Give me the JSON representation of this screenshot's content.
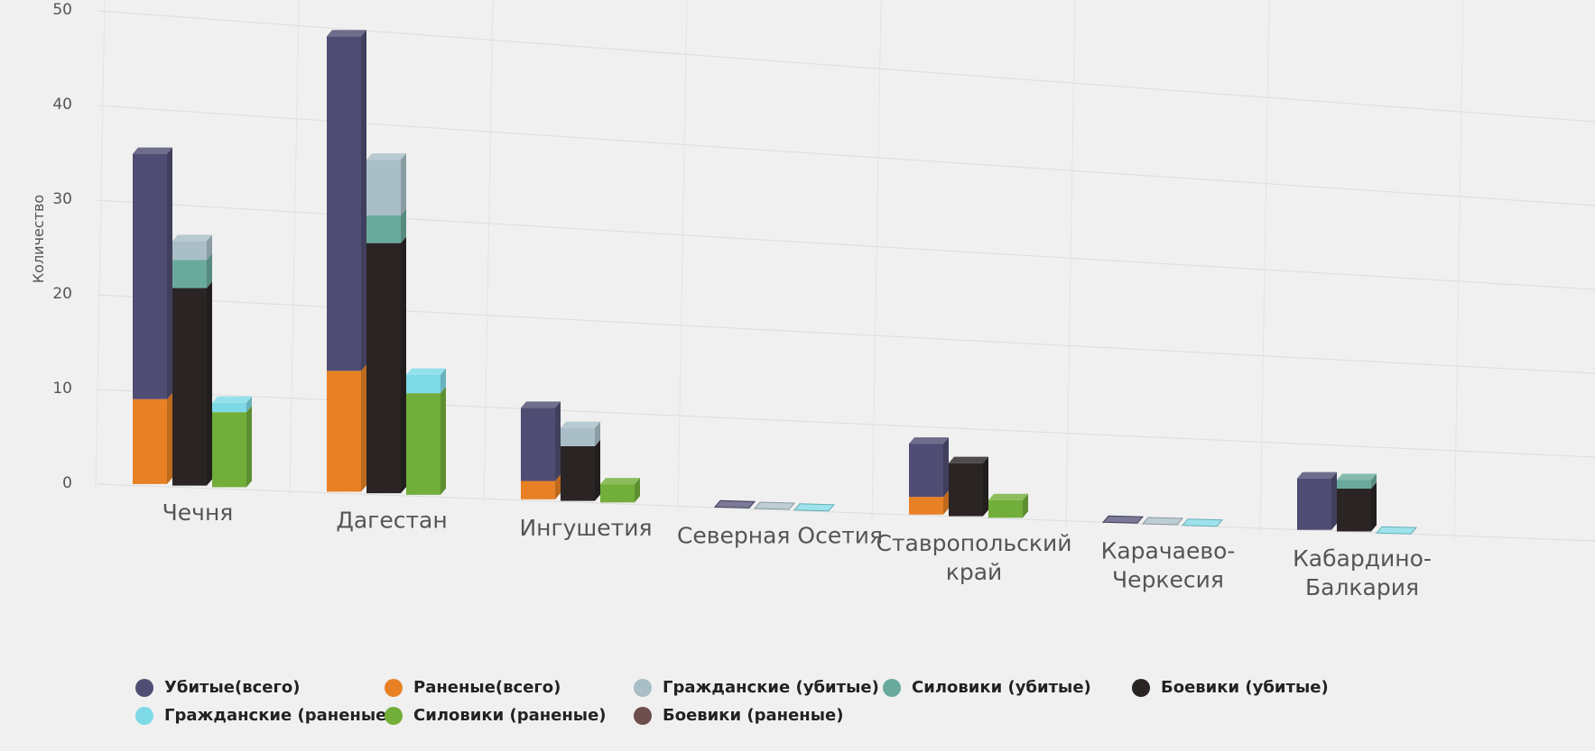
{
  "chart_data": {
    "type": "bar",
    "subtype": "3d-stacked-grouped",
    "ylabel": "Количество",
    "ylim": [
      0,
      50
    ],
    "yticks": [
      0,
      10,
      20,
      30,
      40,
      50
    ],
    "grid": true,
    "legend_position": "bottom",
    "categories": [
      "Чечня",
      "Дагестан",
      "Ингушетия",
      "Северная Осетия",
      "Ставропольский край",
      "Карачаево-Черкесия",
      "Кабардино-Балкария"
    ],
    "category_lines": [
      [
        "Чечня"
      ],
      [
        "Дагестан"
      ],
      [
        "Ингушетия"
      ],
      [
        "Северная Осетия"
      ],
      [
        "Ставропольский",
        "край"
      ],
      [
        "Карачаево-",
        "Черкесия"
      ],
      [
        "Кабардино-",
        "Балкария"
      ]
    ],
    "series": [
      {
        "name": "Убитые(всего)",
        "color": "#4f4d73",
        "stack": "total",
        "values": [
          26,
          36,
          8,
          0,
          6,
          0,
          6
        ]
      },
      {
        "name": "Раненые(всего)",
        "color": "#e88125",
        "stack": "total",
        "values": [
          9,
          13,
          2,
          0,
          2,
          0,
          0
        ]
      },
      {
        "name": "Гражданские (убитые)",
        "color": "#a9bec7",
        "stack": "killed",
        "values": [
          2,
          6,
          2,
          0,
          0,
          0,
          0
        ]
      },
      {
        "name": "Силовики (убитые)",
        "color": "#6aaa9c",
        "stack": "killed",
        "values": [
          3,
          3,
          0,
          0,
          0,
          0,
          1
        ]
      },
      {
        "name": "Боевики (убитые)",
        "color": "#2a2424",
        "stack": "killed",
        "values": [
          21,
          27,
          6,
          0,
          6,
          0,
          5
        ]
      },
      {
        "name": "Гражданские (раненые)",
        "color": "#7dd9e6",
        "stack": "wounded",
        "values": [
          1,
          2,
          0,
          0,
          0,
          0,
          0
        ]
      },
      {
        "name": "Силовики (раненые)",
        "color": "#72ae3a",
        "stack": "wounded",
        "values": [
          8,
          11,
          2,
          0,
          2,
          0,
          0
        ]
      },
      {
        "name": "Боевики (раненые)",
        "color": "#6e4d4d",
        "stack": "wounded",
        "values": [
          0,
          0,
          0,
          0,
          0,
          0,
          0
        ]
      }
    ]
  }
}
